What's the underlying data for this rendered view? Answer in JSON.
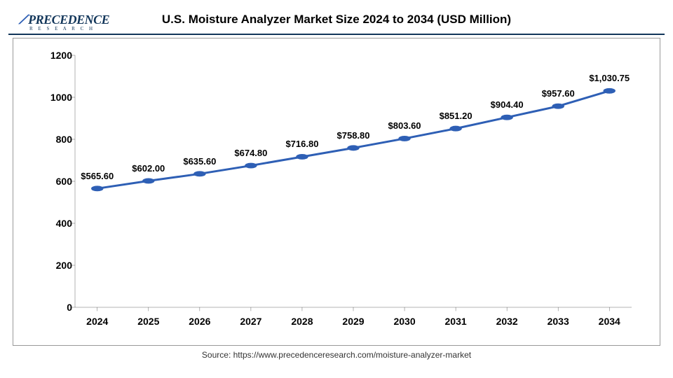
{
  "logo_text": "PRECEDENCE",
  "logo_sub": "R E S E A R C H",
  "title": "U.S. Moisture Analyzer Market Size 2024 to 2034 (USD Million)",
  "source": "Source: https://www.precedenceresearch.com/moisture-analyzer-market",
  "chart": {
    "type": "line",
    "years": [
      "2024",
      "2025",
      "2026",
      "2027",
      "2028",
      "2029",
      "2030",
      "2031",
      "2032",
      "2033",
      "2034"
    ],
    "values": [
      565.6,
      602.0,
      635.6,
      674.8,
      716.8,
      758.8,
      803.6,
      851.2,
      904.4,
      957.6,
      1030.75
    ],
    "value_labels": [
      "$565.60",
      "$602.00",
      "$635.60",
      "$674.80",
      "$716.80",
      "$758.80",
      "$803.60",
      "$851.20",
      "$904.40",
      "$957.60",
      "$1,030.75"
    ],
    "ylim": [
      0,
      1200
    ],
    "ytick_step": 200,
    "yticks": [
      "0",
      "200",
      "400",
      "600",
      "800",
      "1000",
      "1200"
    ],
    "line_color": "#2e5fb5",
    "marker_color": "#2e5fb5",
    "line_width": 3,
    "marker_radius": 5,
    "axis_color": "#000000",
    "title_color": "#000000",
    "background_color": "#ffffff",
    "label_fontsize": 13,
    "axis_fontsize": 14
  }
}
